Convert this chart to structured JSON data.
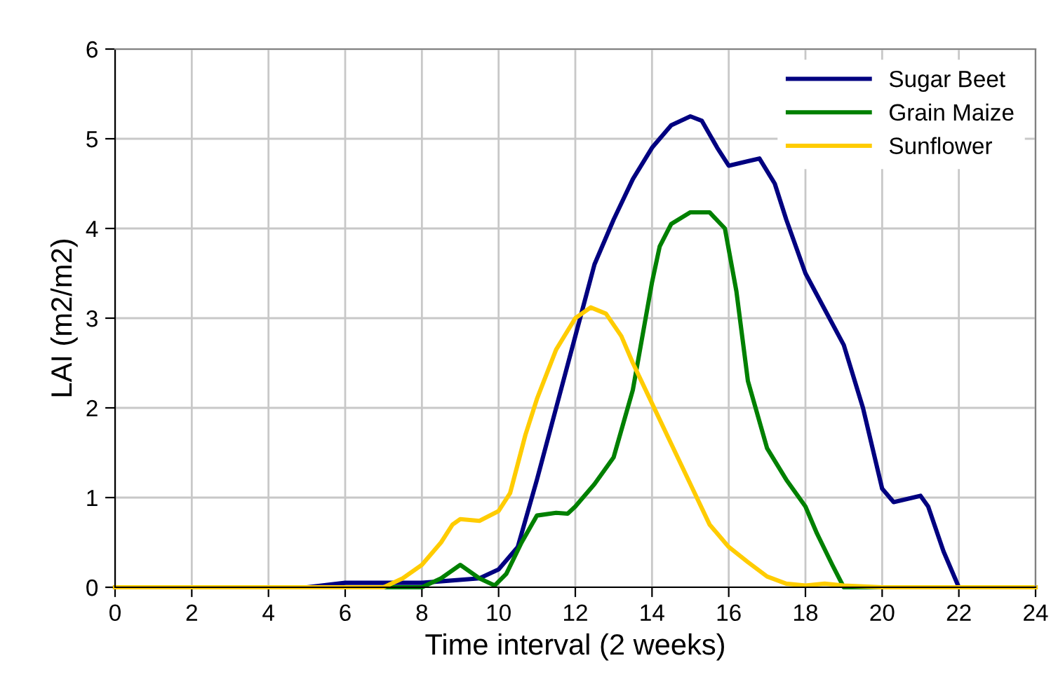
{
  "chart_data": {
    "type": "line",
    "xlabel": "Time interval (2 weeks)",
    "ylabel": "LAI (m2/m2)",
    "xlim": [
      0,
      24
    ],
    "xticks": [
      0,
      2,
      4,
      6,
      8,
      10,
      12,
      14,
      16,
      18,
      20,
      22,
      24
    ],
    "ylim": [
      0,
      6
    ],
    "yticks": [
      0,
      1,
      2,
      3,
      4,
      5,
      6
    ],
    "grid": true,
    "legend": "top right",
    "marker": "none",
    "line_style": "solid",
    "series": [
      {
        "name": "Sugar Beet",
        "color": "#000080",
        "x": [
          0,
          5,
          6,
          8,
          9.5,
          10,
          10.5,
          11,
          11.5,
          12,
          12.5,
          13,
          13.5,
          14,
          14.5,
          15,
          15.3,
          15.7,
          16,
          16.5,
          16.8,
          17.2,
          17.5,
          18,
          18.5,
          19,
          19.5,
          20,
          20.3,
          21,
          21.2,
          21.6,
          22,
          24
        ],
        "values": [
          0,
          0,
          0.05,
          0.05,
          0.1,
          0.2,
          0.45,
          1.2,
          2.0,
          2.8,
          3.6,
          4.1,
          4.55,
          4.9,
          5.15,
          5.25,
          5.2,
          4.9,
          4.7,
          4.75,
          4.78,
          4.5,
          4.1,
          3.5,
          3.1,
          2.7,
          2.0,
          1.1,
          0.95,
          1.02,
          0.9,
          0.4,
          0,
          0
        ]
      },
      {
        "name": "Grain Maize",
        "color": "#008000",
        "x": [
          0,
          8,
          8.5,
          9,
          9.5,
          9.9,
          10.2,
          10.6,
          11,
          11.5,
          11.8,
          12,
          12.5,
          13,
          13.5,
          14,
          14.2,
          14.5,
          15,
          15.5,
          15.9,
          16.2,
          16.5,
          17,
          17.5,
          18,
          18.3,
          18.7,
          19,
          24
        ],
        "values": [
          0,
          0,
          0.1,
          0.25,
          0.1,
          0.02,
          0.15,
          0.5,
          0.8,
          0.83,
          0.82,
          0.9,
          1.15,
          1.45,
          2.2,
          3.4,
          3.8,
          4.05,
          4.18,
          4.18,
          4.0,
          3.3,
          2.3,
          1.55,
          1.2,
          0.9,
          0.6,
          0.25,
          0,
          0
        ]
      },
      {
        "name": "Sunflower",
        "color": "#ffcc00",
        "x": [
          0,
          7,
          7.5,
          8,
          8.5,
          8.8,
          9,
          9.5,
          10,
          10.3,
          10.7,
          11,
          11.5,
          12,
          12.4,
          12.8,
          13.2,
          13.5,
          14,
          14.5,
          15,
          15.5,
          16,
          16.5,
          17,
          17.5,
          18,
          18.5,
          19,
          20,
          24
        ],
        "values": [
          0,
          0,
          0.1,
          0.25,
          0.5,
          0.7,
          0.76,
          0.74,
          0.85,
          1.05,
          1.7,
          2.1,
          2.65,
          3.0,
          3.12,
          3.05,
          2.8,
          2.5,
          2.05,
          1.6,
          1.15,
          0.7,
          0.45,
          0.28,
          0.12,
          0.04,
          0.02,
          0.04,
          0.02,
          0,
          0
        ]
      }
    ]
  }
}
